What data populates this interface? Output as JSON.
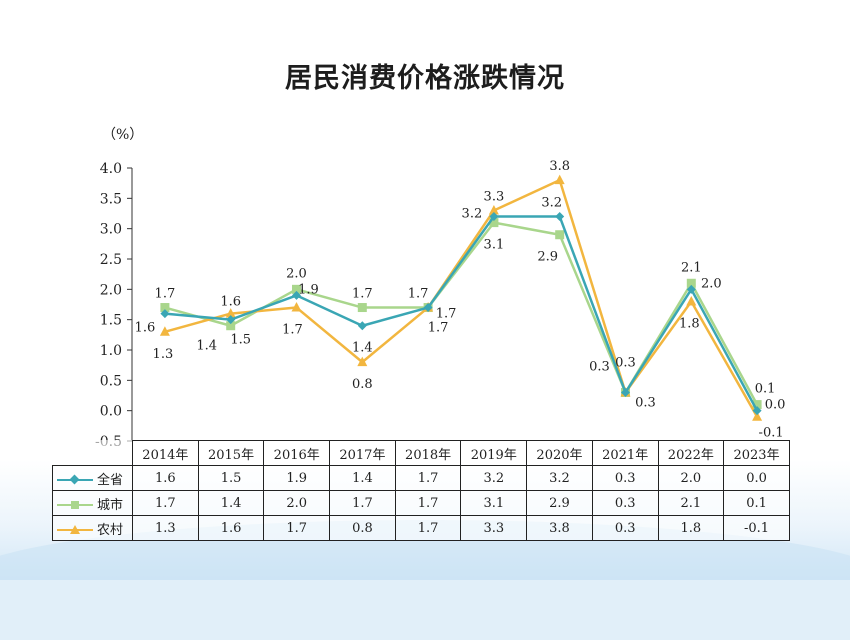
{
  "title": "居民消费价格涨跌情况",
  "unit": "（%）",
  "chart_data": {
    "type": "line",
    "categories": [
      "2014年",
      "2015年",
      "2016年",
      "2017年",
      "2018年",
      "2019年",
      "2020年",
      "2021年",
      "2022年",
      "2023年"
    ],
    "ylim": [
      -0.5,
      4.0
    ],
    "yticks": [
      "4.0",
      "3.5",
      "3.0",
      "2.5",
      "2.0",
      "1.5",
      "1.0",
      "0.5",
      "0.0",
      "-0.5"
    ],
    "ytick_values": [
      4.0,
      3.5,
      3.0,
      2.5,
      2.0,
      1.5,
      1.0,
      0.5,
      0.0,
      -0.5
    ],
    "legend": "table",
    "series": [
      {
        "name": "全省",
        "marker": "diamond",
        "color": "#3aa6b4",
        "values": [
          1.6,
          1.5,
          1.9,
          1.4,
          1.7,
          3.2,
          3.2,
          0.3,
          2.0,
          0.0
        ],
        "labels": [
          "1.6",
          "1.5",
          "1.9",
          "1.4",
          "1.7",
          "3.2",
          "3.2",
          "0.3",
          "2.0",
          "0.0"
        ]
      },
      {
        "name": "城市",
        "marker": "square",
        "color": "#a9d68c",
        "values": [
          1.7,
          1.4,
          2.0,
          1.7,
          1.7,
          3.1,
          2.9,
          0.3,
          2.1,
          0.1
        ],
        "labels": [
          "1.7",
          "1.4",
          "2.0",
          "1.7",
          "1.7",
          "3.1",
          "2.9",
          "0.3",
          "2.1",
          "0.1"
        ]
      },
      {
        "name": "农村",
        "marker": "triangle",
        "color": "#f2b63f",
        "values": [
          1.3,
          1.6,
          1.7,
          0.8,
          1.7,
          3.3,
          3.8,
          0.3,
          1.8,
          -0.1
        ],
        "labels": [
          "1.3",
          "1.6",
          "1.7",
          "0.8",
          "1.7",
          "3.3",
          "3.8",
          "0.3",
          "1.8",
          "-0.1"
        ]
      }
    ]
  },
  "table": {
    "rows": [
      {
        "name": "全省",
        "cells": [
          "1.6",
          "1.5",
          "1.9",
          "1.4",
          "1.7",
          "3.2",
          "3.2",
          "0.3",
          "2.0",
          "0.0"
        ]
      },
      {
        "name": "城市",
        "cells": [
          "1.7",
          "1.4",
          "2.0",
          "1.7",
          "1.7",
          "3.1",
          "2.9",
          "0.3",
          "2.1",
          "0.1"
        ]
      },
      {
        "name": "农村",
        "cells": [
          "1.3",
          "1.6",
          "1.7",
          "0.8",
          "1.7",
          "3.3",
          "3.8",
          "0.3",
          "1.8",
          "-0.1"
        ]
      }
    ]
  }
}
